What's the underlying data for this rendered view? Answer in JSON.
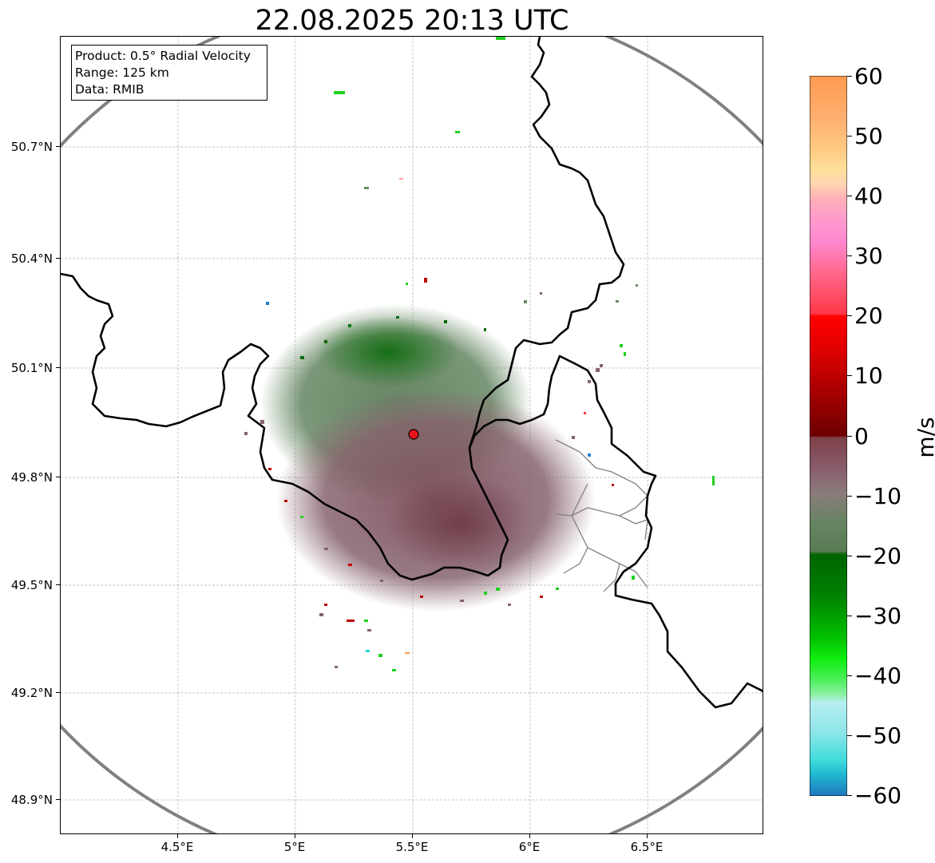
{
  "title": "22.08.2025 20:13 UTC",
  "info": {
    "product": "Product: 0.5° Radial Velocity",
    "range": "Range: 125 km",
    "source": "Data: RMIB"
  },
  "lat_ticks": [
    "50.7°N",
    "50.4°N",
    "50.1°N",
    "49.8°N",
    "49.5°N",
    "49.2°N",
    "48.9°N"
  ],
  "lon_ticks": [
    "4.5°E",
    "5°E",
    "5.5°E",
    "6°E",
    "6.5°E"
  ],
  "radar_site": {
    "lon": 5.505,
    "lat": 49.915
  },
  "colorbar": {
    "label": "m/s",
    "min": -60,
    "max": 60,
    "ticks": [
      "60",
      "50",
      "40",
      "30",
      "20",
      "10",
      "0",
      "−10",
      "−20",
      "−30",
      "−40",
      "−50",
      "−60"
    ]
  },
  "colors": {
    "range_ring": "#808080",
    "border": "#000000",
    "province": "#808080",
    "site_marker": "#e8141c"
  }
}
